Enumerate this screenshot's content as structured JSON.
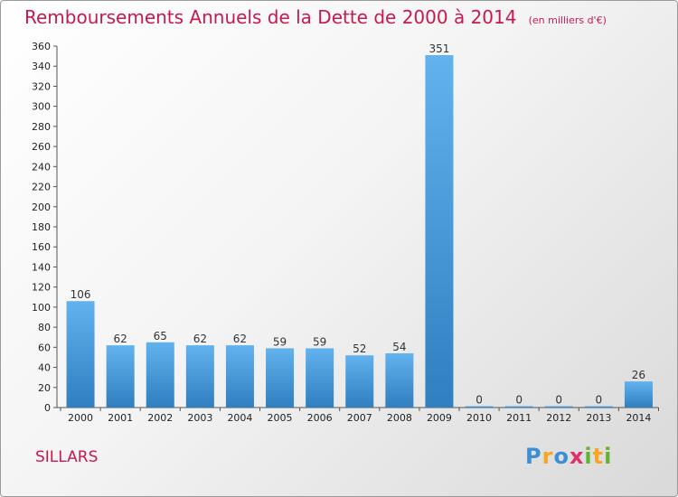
{
  "title": "Remboursements Annuels de la Dette de 2000 à 2014",
  "unit": "(en milliers d'€)",
  "city": "SILLARS",
  "logo": {
    "letters": [
      "P",
      "r",
      "o",
      "x",
      "i",
      "t",
      "i"
    ]
  },
  "colors": {
    "title": "#c8194e",
    "bar_top": "#62b2ee",
    "bar_bottom": "#2f7fc1",
    "logo": [
      "#3a8fd6",
      "#f5a623",
      "#3a8fd6",
      "#e02f6b",
      "#63b32e",
      "#f5a623",
      "#63b32e"
    ]
  },
  "chart_data": {
    "type": "bar",
    "categories": [
      "2000",
      "2001",
      "2002",
      "2003",
      "2004",
      "2005",
      "2006",
      "2007",
      "2008",
      "2009",
      "2010",
      "2011",
      "2012",
      "2013",
      "2014"
    ],
    "values": [
      106,
      62,
      65,
      62,
      62,
      59,
      59,
      52,
      54,
      351,
      0,
      0,
      0,
      0,
      26
    ],
    "ylim": [
      0,
      360
    ],
    "yticks": [
      0,
      20,
      40,
      60,
      80,
      100,
      120,
      140,
      160,
      180,
      200,
      220,
      240,
      260,
      280,
      300,
      320,
      340,
      360
    ],
    "grid": false,
    "data_labels": true
  }
}
